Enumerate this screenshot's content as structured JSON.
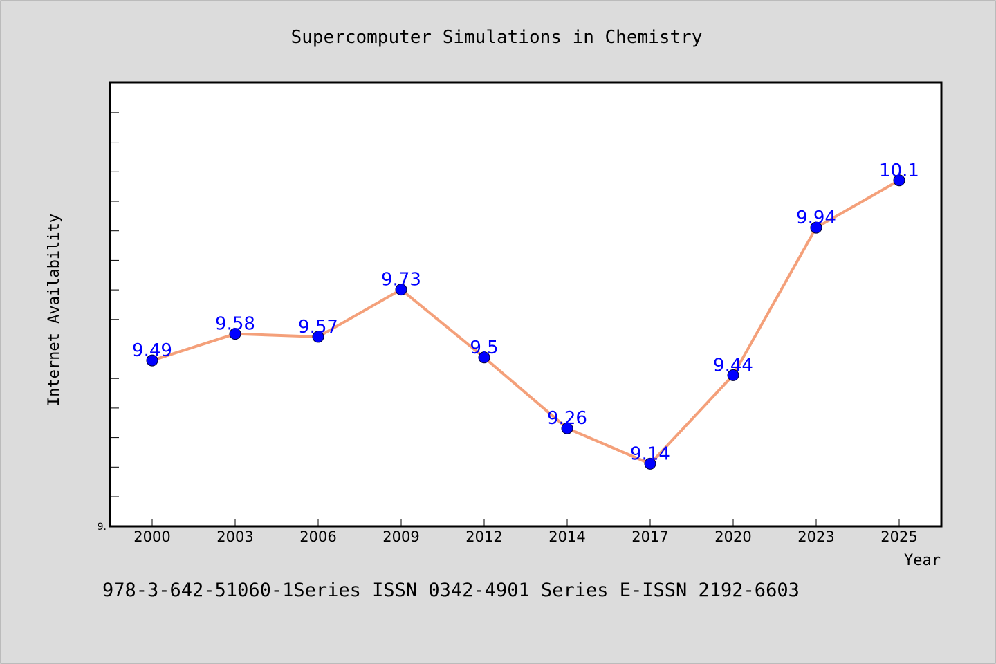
{
  "chart_data": {
    "type": "line",
    "title": "Supercomputer Simulations in Chemistry",
    "xlabel": "Year",
    "ylabel": "Internet Availability",
    "categories": [
      "2000",
      "2003",
      "2006",
      "2009",
      "2012",
      "2014",
      "2017",
      "2020",
      "2023",
      "2025"
    ],
    "series": [
      {
        "values": [
          9.49,
          9.58,
          9.57,
          9.73,
          9.5,
          9.26,
          9.14,
          9.44,
          9.94,
          10.1
        ],
        "labels": [
          "9.49",
          "9.58",
          "9.57",
          "9.73",
          "9.5",
          "9.26",
          "9.14",
          "9.44",
          "9.94",
          "10.1"
        ],
        "line_color": "#f4a07a",
        "marker_color": "#0000ff"
      }
    ],
    "ylim": [
      8.93,
      10.43
    ],
    "y_tick_label": "9.",
    "grid": false,
    "legend": "none"
  },
  "footer": {
    "text": "978-3-642-51060-1Series ISSN 0342-4901 Series E-ISSN 2192-6603"
  },
  "colors": {
    "background": "#dcdcdc",
    "plot_background": "#ffffff",
    "line": "#f4a07a",
    "marker": "#0000ff",
    "label": "#0000ff"
  }
}
